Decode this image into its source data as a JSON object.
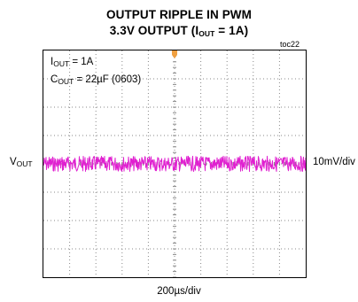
{
  "title": {
    "line1": "OUTPUT RIPPLE IN PWM",
    "line2_prefix": "3.3V OUTPUT (I",
    "line2_sub": "OUT",
    "line2_suffix": " = 1A)"
  },
  "figure_id": "toc22",
  "annotations": {
    "load_prefix": "I",
    "load_sub": "OUT",
    "load_suffix": " = 1A",
    "cap_prefix": "C",
    "cap_sub": "OUT",
    "cap_suffix": " = 22µF (0603)"
  },
  "channel_label": {
    "prefix": "V",
    "sub": "OUT"
  },
  "vertical_scale": "10mV/div",
  "horizontal_scale": "200µs/div",
  "colors": {
    "trace": "#e020d0",
    "trigger_marker": "#f0a040",
    "grid": "#888888",
    "frame": "#000000"
  },
  "chart_data": {
    "type": "line",
    "x_divisions": 10,
    "y_divisions": 8,
    "x_unit_per_div": "200µs",
    "y_unit_per_div": "10mV",
    "xlim_div": [
      0,
      10
    ],
    "ylim_div": [
      -4,
      4
    ],
    "grid": true,
    "series": [
      {
        "label": "VOUT",
        "display": "ac-coupled ripple",
        "center_div": 0,
        "peak_to_peak_div": 0.6
      }
    ]
  }
}
